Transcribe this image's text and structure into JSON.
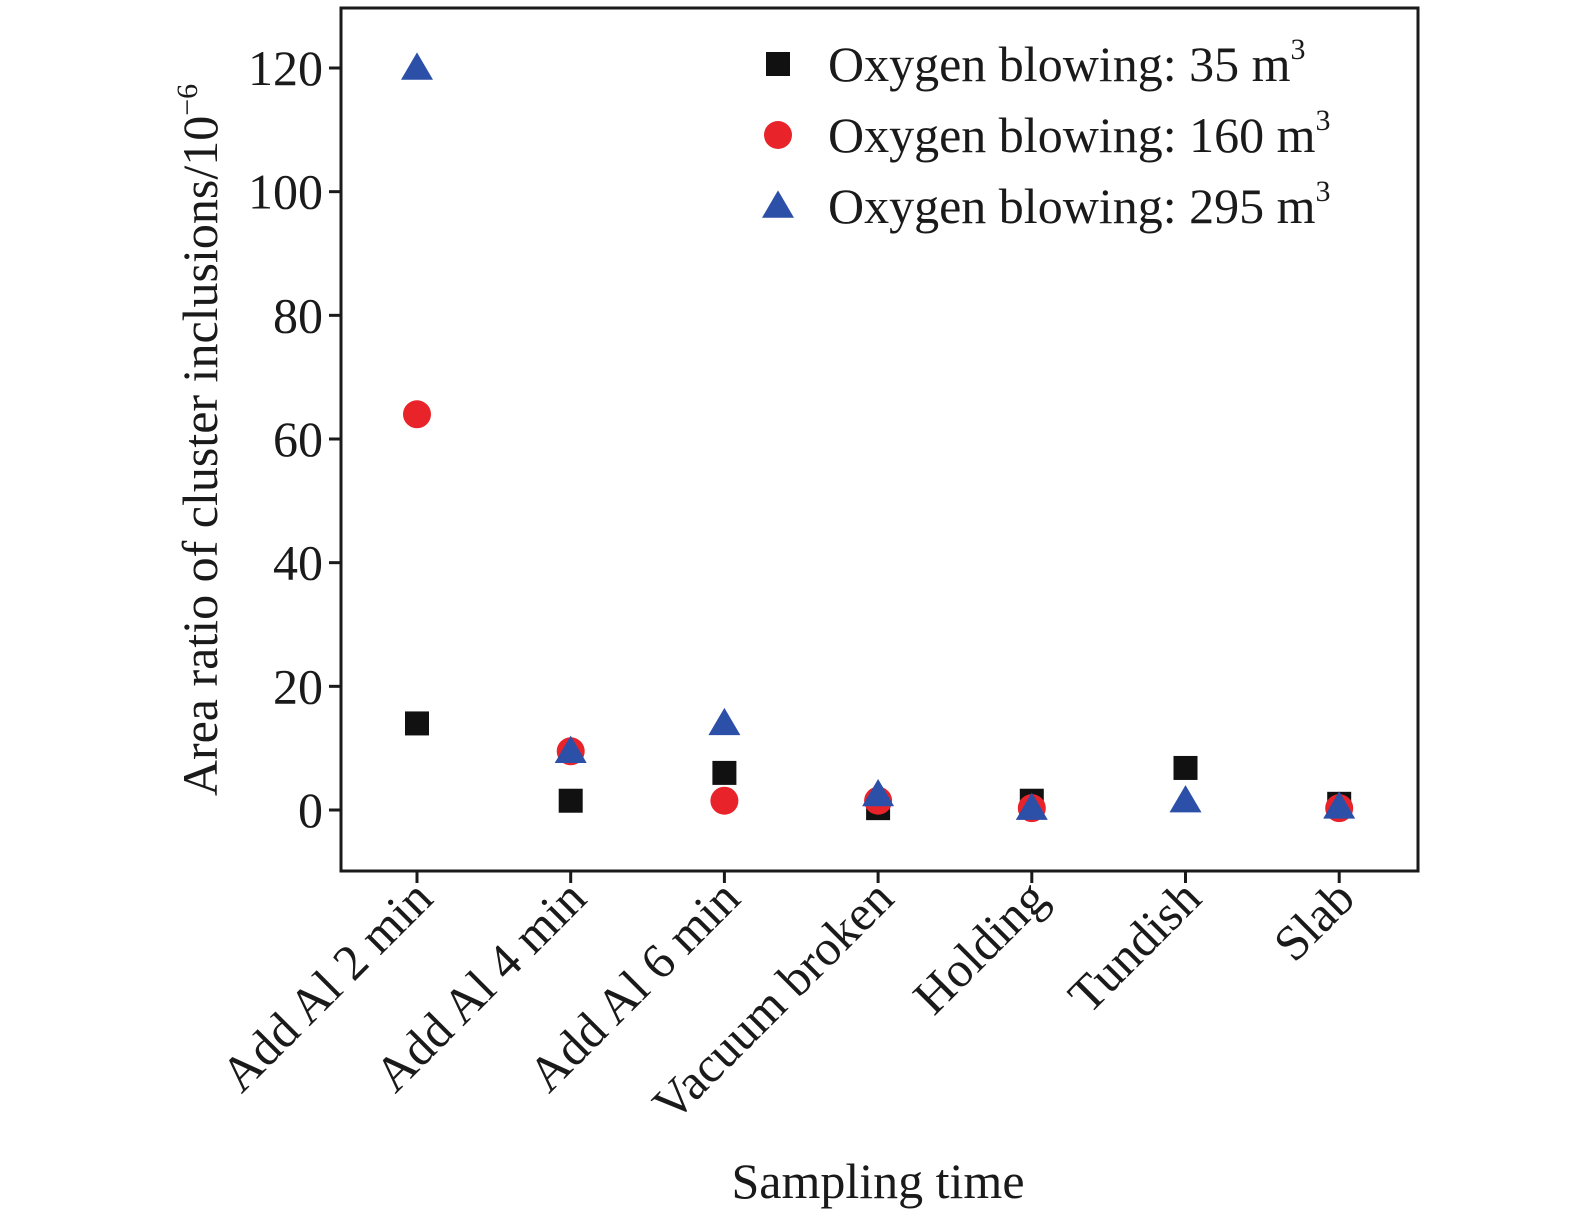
{
  "chart_data": {
    "type": "scatter",
    "title": "",
    "xlabel": "Sampling time",
    "ylabel": "Area ratio of cluster inclusions/10",
    "ylabel_exponent": "−6",
    "categories": [
      "Add Al 2 min",
      "Add Al 4 min",
      "Add Al 6 min",
      "Vacuum broken",
      "Holding",
      "Tundish",
      "Slab"
    ],
    "yticks": [
      0,
      20,
      40,
      60,
      80,
      100,
      120
    ],
    "ylim": [
      -10,
      130
    ],
    "grid": false,
    "legend_position": "top-right",
    "series": [
      {
        "name": "Oxygen blowing: 35 m",
        "name_superscript": "3",
        "marker": "square",
        "color": "#111111",
        "values": [
          14,
          1.5,
          6,
          0.3,
          1.5,
          6.8,
          1
        ]
      },
      {
        "name": "Oxygen blowing: 160 m",
        "name_superscript": "3",
        "marker": "circle",
        "color": "#e8232a",
        "values": [
          64,
          9.5,
          1.5,
          1.5,
          0.3,
          null,
          0.3
        ]
      },
      {
        "name": "Oxygen blowing: 295 m",
        "name_superscript": "3",
        "marker": "triangle",
        "color": "#2c4fa8",
        "values": [
          120,
          9.5,
          14,
          2.5,
          0.3,
          1.5,
          0.5
        ]
      }
    ]
  }
}
